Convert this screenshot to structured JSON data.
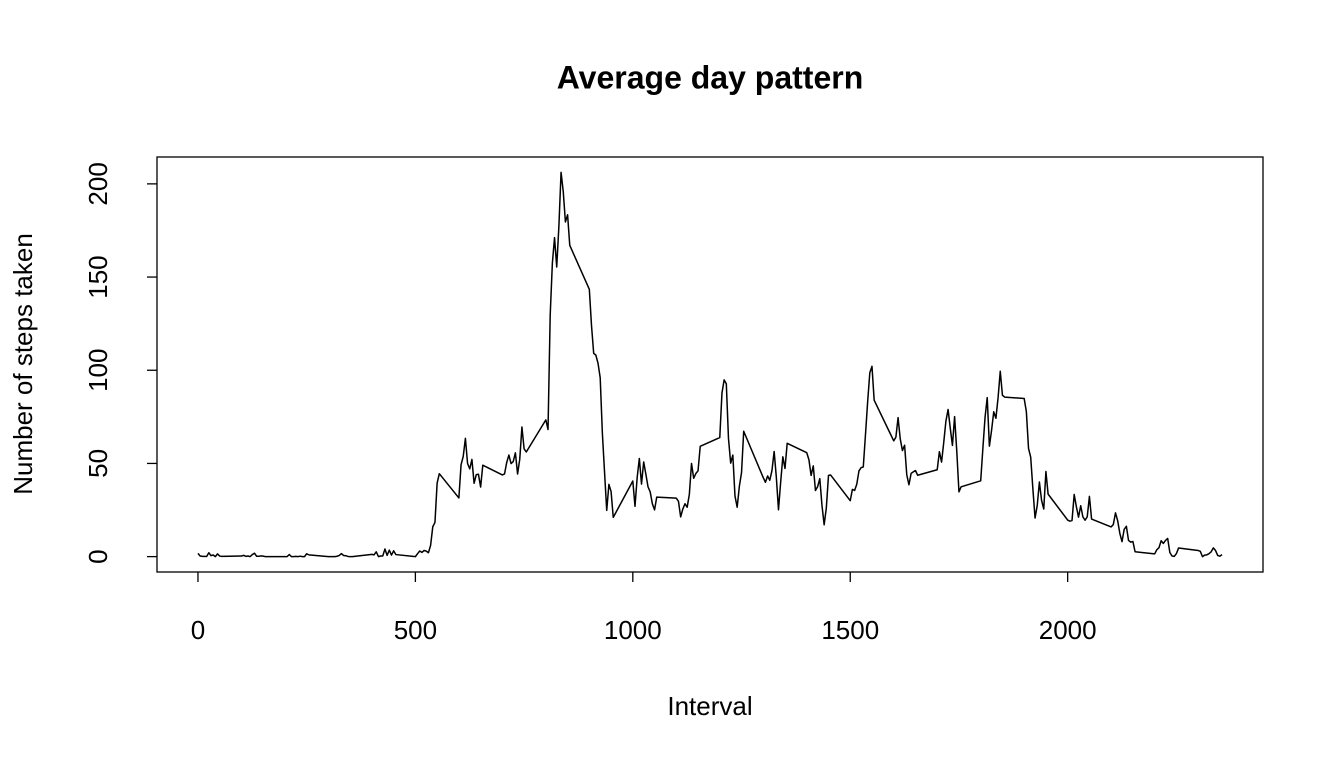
{
  "chart_data": {
    "type": "line",
    "title": "Average day pattern",
    "x_label": "Interval",
    "y_label": "Number of steps taken",
    "color": "#000000",
    "xlim": [
      -94.2,
      2449.2
    ],
    "xticks": [
      0,
      500,
      1000,
      1500,
      2000
    ],
    "ylim": [
      -8.25,
      214.42
    ],
    "yticks": [
      0,
      50,
      100,
      150,
      200
    ],
    "x": [
      0,
      5,
      10,
      15,
      20,
      25,
      30,
      35,
      40,
      45,
      50,
      55,
      100,
      105,
      110,
      115,
      120,
      125,
      130,
      135,
      140,
      145,
      150,
      155,
      200,
      205,
      210,
      215,
      220,
      225,
      230,
      235,
      240,
      245,
      250,
      255,
      300,
      305,
      310,
      315,
      320,
      325,
      330,
      335,
      340,
      345,
      350,
      355,
      400,
      405,
      410,
      415,
      420,
      425,
      430,
      435,
      440,
      445,
      450,
      455,
      500,
      505,
      510,
      515,
      520,
      525,
      530,
      535,
      540,
      545,
      550,
      555,
      600,
      605,
      610,
      615,
      620,
      625,
      630,
      635,
      640,
      645,
      650,
      655,
      700,
      705,
      710,
      715,
      720,
      725,
      730,
      735,
      740,
      745,
      750,
      755,
      800,
      805,
      810,
      815,
      820,
      825,
      830,
      835,
      840,
      845,
      850,
      855,
      900,
      905,
      910,
      915,
      920,
      925,
      930,
      935,
      940,
      945,
      950,
      955,
      1000,
      1005,
      1010,
      1015,
      1020,
      1025,
      1030,
      1035,
      1040,
      1045,
      1050,
      1055,
      1100,
      1105,
      1110,
      1115,
      1120,
      1125,
      1130,
      1135,
      1140,
      1145,
      1150,
      1155,
      1200,
      1205,
      1210,
      1215,
      1220,
      1225,
      1230,
      1235,
      1240,
      1245,
      1250,
      1255,
      1300,
      1305,
      1310,
      1315,
      1320,
      1325,
      1330,
      1335,
      1340,
      1345,
      1350,
      1355,
      1400,
      1405,
      1410,
      1415,
      1420,
      1425,
      1430,
      1435,
      1440,
      1445,
      1450,
      1455,
      1500,
      1505,
      1510,
      1515,
      1520,
      1525,
      1530,
      1535,
      1540,
      1545,
      1550,
      1555,
      1600,
      1605,
      1610,
      1615,
      1620,
      1625,
      1630,
      1635,
      1640,
      1645,
      1650,
      1655,
      1700,
      1705,
      1710,
      1715,
      1720,
      1725,
      1730,
      1735,
      1740,
      1745,
      1750,
      1755,
      1800,
      1805,
      1810,
      1815,
      1820,
      1825,
      1830,
      1835,
      1840,
      1845,
      1850,
      1855,
      1900,
      1905,
      1910,
      1915,
      1920,
      1925,
      1930,
      1935,
      1940,
      1945,
      1950,
      1955,
      2000,
      2005,
      2010,
      2015,
      2020,
      2025,
      2030,
      2035,
      2040,
      2045,
      2050,
      2055,
      2100,
      2105,
      2110,
      2115,
      2120,
      2125,
      2130,
      2135,
      2140,
      2145,
      2150,
      2155,
      2200,
      2205,
      2210,
      2215,
      2220,
      2225,
      2230,
      2235,
      2240,
      2245,
      2250,
      2255,
      2300,
      2305,
      2310,
      2315,
      2320,
      2325,
      2330,
      2335,
      2340,
      2345,
      2350,
      2355
    ],
    "values": [
      1.72,
      0.34,
      0.13,
      0.15,
      0.08,
      2.09,
      0.53,
      0.87,
      0,
      1.47,
      0.3,
      0.13,
      0.32,
      0.68,
      0.15,
      0.34,
      0,
      1.11,
      1.83,
      0.17,
      0.17,
      0.38,
      0.26,
      0,
      0,
      0,
      1.13,
      0,
      0,
      0.13,
      0,
      0.23,
      0,
      0,
      1.55,
      0.94,
      0,
      0,
      0,
      0,
      0.21,
      0.62,
      1.62,
      0.58,
      0.49,
      0.08,
      0,
      0,
      1.19,
      0.94,
      2.57,
      0,
      0.34,
      0.36,
      4.11,
      0.66,
      3.49,
      0.83,
      3.11,
      1.11,
      0,
      1.57,
      3,
      2.25,
      3.32,
      2.96,
      2.09,
      6.06,
      16.02,
      18.34,
      39.45,
      44.49,
      31.49,
      49.26,
      53.77,
      63.45,
      49.96,
      47.08,
      52.15,
      39.34,
      44.02,
      44.17,
      37.36,
      49.04,
      43.81,
      44.38,
      50.51,
      54.51,
      49.92,
      50.98,
      55.68,
      44.32,
      52.26,
      69.55,
      57.85,
      56.15,
      73.38,
      68.21,
      129.43,
      157.53,
      171.15,
      155.4,
      177.3,
      206.17,
      195.92,
      179.57,
      183.4,
      167.02,
      143.45,
      124.04,
      109.11,
      108.11,
      103.72,
      95.96,
      66.21,
      45.23,
      24.79,
      38.75,
      34.98,
      21.06,
      40.57,
      26.98,
      42.42,
      52.66,
      38.92,
      50.79,
      44.28,
      37.42,
      34.7,
      28.34,
      25.09,
      31.94,
      31.36,
      29.68,
      21.32,
      25.55,
      28.38,
      26.47,
      33.43,
      49.98,
      42.04,
      44.6,
      46.04,
      59.19,
      63.87,
      87.7,
      94.85,
      92.77,
      63.4,
      50.17,
      54.47,
      32.42,
      26.53,
      37.74,
      45.06,
      67.28,
      42.34,
      39.89,
      43.26,
      40.98,
      46.25,
      56.43,
      42.75,
      25.13,
      39.96,
      53.55,
      47.32,
      60.81,
      55.75,
      51.96,
      43.58,
      48.7,
      35.47,
      37.55,
      41.85,
      27.51,
      17.11,
      26.08,
      43.62,
      43.77,
      30.02,
      36.08,
      35.49,
      38.85,
      45.96,
      47.75,
      48.13,
      65.32,
      82.91,
      98.66,
      102.11,
      83.96,
      62.13,
      64.13,
      74.55,
      63.17,
      56.91,
      59.77,
      43.87,
      38.57,
      44.66,
      45.45,
      46.21,
      43.68,
      46.62,
      56.3,
      50.72,
      61.23,
      72.72,
      78.94,
      68.94,
      59.66,
      75.09,
      56.51,
      34.77,
      37.45,
      40.68,
      58.02,
      74.7,
      85.32,
      59.26,
      67.77,
      77.7,
      74.25,
      85.34,
      99.45,
      86.58,
      85.6,
      84.87,
      77.83,
      58.04,
      53.36,
      36.32,
      20.72,
      27.4,
      40.02,
      30.21,
      25.55,
      45.66,
      33.53,
      19.62,
      19.02,
      19.34,
      33.34,
      26.81,
      21.17,
      27.3,
      21.34,
      19.55,
      21.32,
      32.3,
      20.15,
      15.94,
      17.23,
      23.45,
      19.25,
      12.45,
      8.02,
      14.66,
      16.3,
      8.68,
      7.79,
      8.13,
      2.62,
      1.45,
      3.68,
      4.81,
      8.51,
      7.08,
      8.7,
      9.75,
      2.21,
      0.32,
      0.11,
      1.6,
      4.6,
      3.3,
      2.85,
      0,
      0.83,
      0.96,
      1.58,
      2.6,
      4.7,
      3.3,
      0.64,
      0.23,
      1.08
    ]
  }
}
